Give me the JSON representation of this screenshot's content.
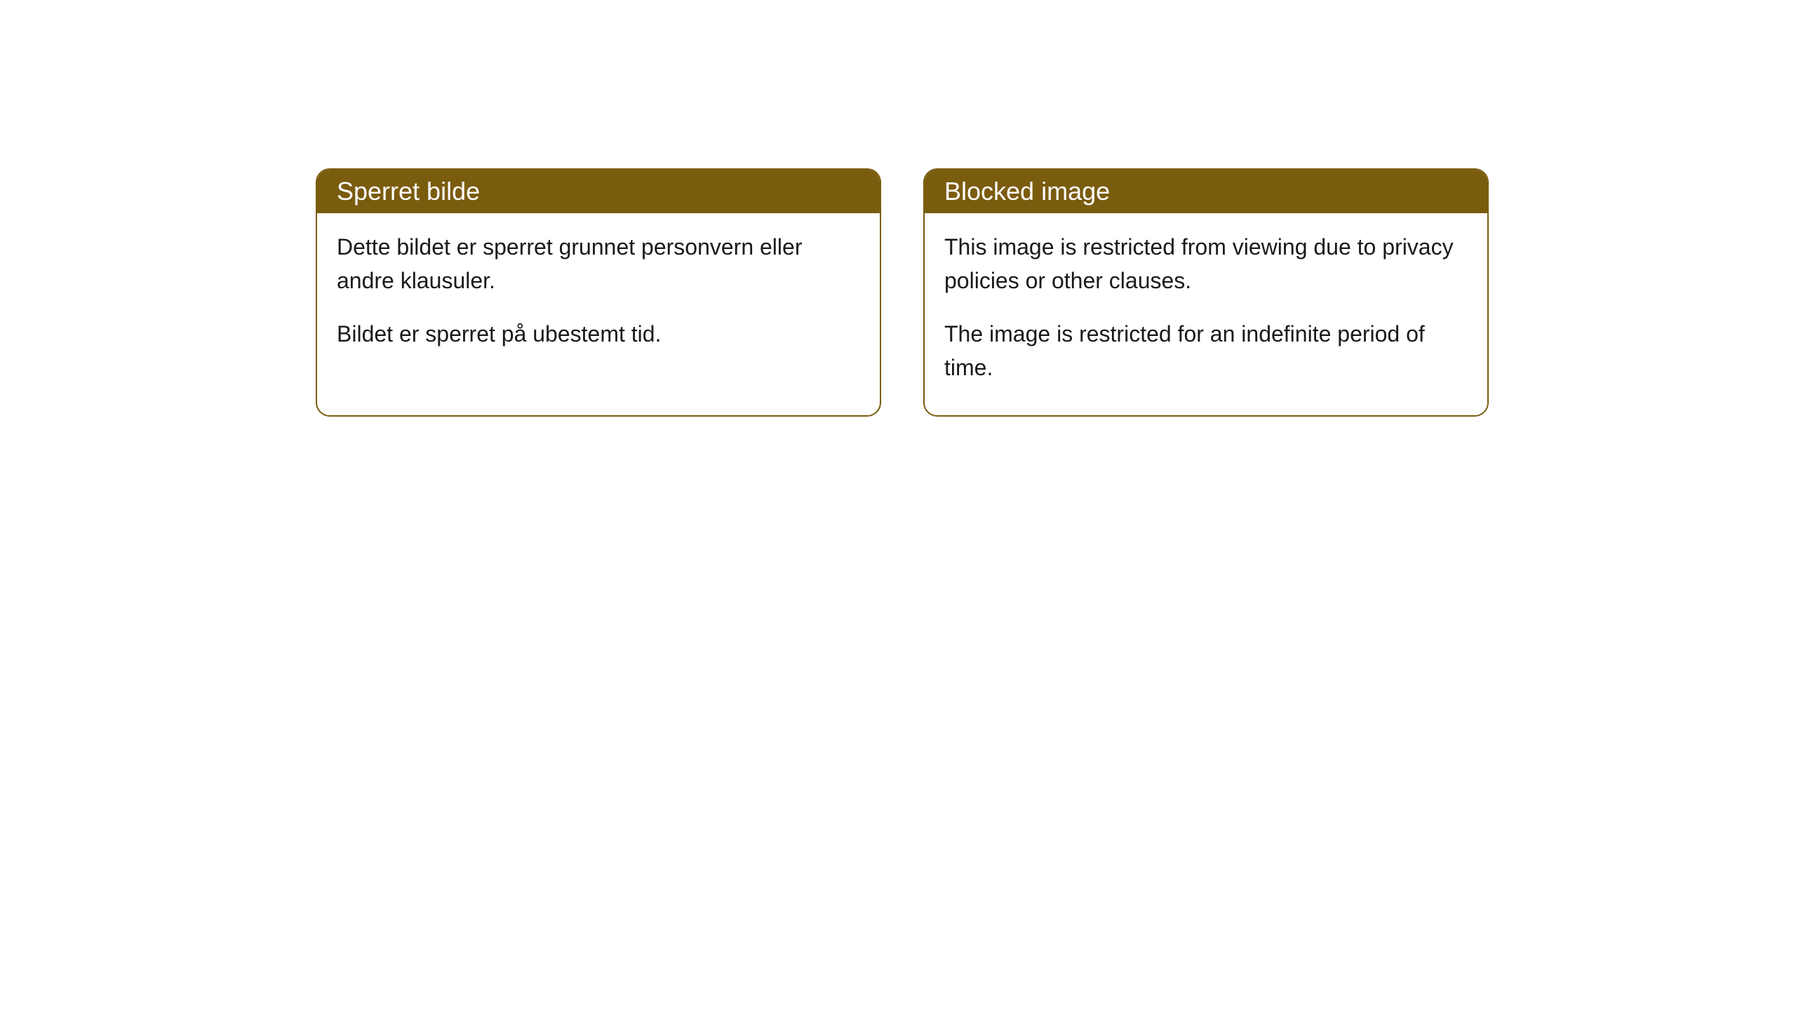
{
  "cards": [
    {
      "title": "Sperret bilde",
      "paragraph_1": "Dette bildet er sperret grunnet personvern eller andre klausuler.",
      "paragraph_2": "Bildet er sperret på ubestemt tid."
    },
    {
      "title": "Blocked image",
      "paragraph_1": "This image is restricted from viewing due to privacy policies or other clauses.",
      "paragraph_2": "The image is restricted for an indefinite period of time."
    }
  ],
  "styling": {
    "header_background_color": "#7a5c0f",
    "header_text_color": "#ffffff",
    "border_color": "#7a5c0f",
    "body_background_color": "#ffffff",
    "body_text_color": "#1a1a1a",
    "border_radius": 20,
    "title_fontsize": 36,
    "body_fontsize": 32
  }
}
